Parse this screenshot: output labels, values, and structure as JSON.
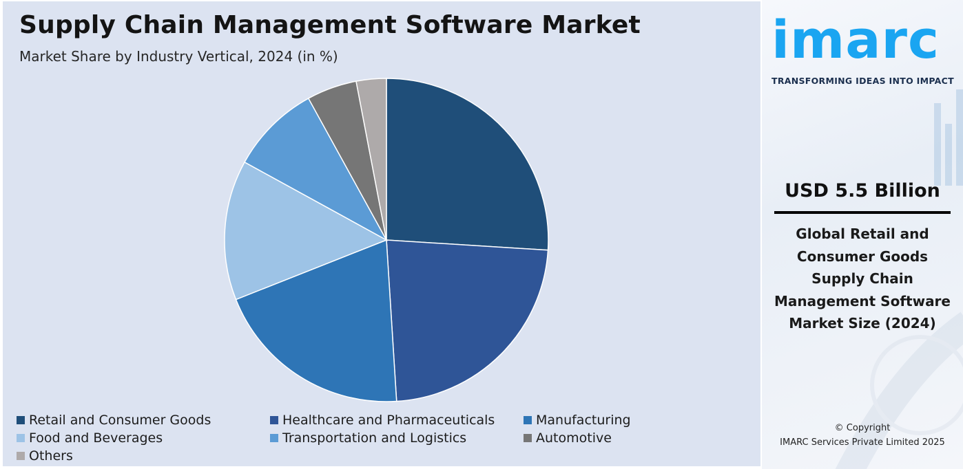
{
  "title": "Supply Chain Management Software Market",
  "subtitle": "Market Share by Industry Vertical, 2024 (in %)",
  "chart_data": {
    "type": "pie",
    "title": "Supply Chain Management Software Market",
    "subtitle": "Market Share by Industry Vertical, 2024 (in %)",
    "legend_position": "bottom",
    "categories": [
      "Retail and Consumer Goods",
      "Healthcare and Pharmaceuticals",
      "Manufacturing",
      "Food and Beverages",
      "Transportation and Logistics",
      "Automotive",
      "Others"
    ],
    "values": [
      26,
      23,
      20,
      14,
      9,
      5,
      3
    ],
    "colors": [
      "#1f4e79",
      "#2f5597",
      "#2e75b6",
      "#9dc3e6",
      "#5b9bd5",
      "#767676",
      "#aeaaaa"
    ]
  },
  "side_panel": {
    "logo": "imarc",
    "tagline": "TRANSFORMING IDEAS INTO IMPACT",
    "kpi_value": "USD 5.5 Billion",
    "kpi_description": "Global Retail and Consumer Goods Supply Chain Management Software Market Size (2024)",
    "copyright_line1": "© Copyright",
    "copyright_line2": "IMARC Services Private Limited 2025",
    "accent_color": "#1aa5f1"
  }
}
